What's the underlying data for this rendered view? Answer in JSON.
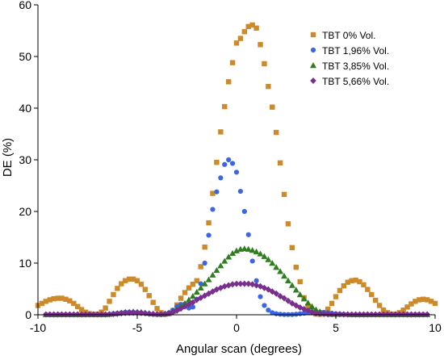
{
  "chart_data": {
    "type": "scatter",
    "title": "",
    "xlabel": "Angular scan (degrees)",
    "ylabel": "DE (%)",
    "xlim": [
      -10,
      10
    ],
    "ylim": [
      0,
      60
    ],
    "xticks": [
      "-10",
      "-5",
      "0",
      "5",
      "10"
    ],
    "xtick_values": [
      -10,
      -5,
      0,
      5,
      10
    ],
    "yticks": [
      "0",
      "10",
      "20",
      "30",
      "40",
      "50",
      "60"
    ],
    "ytick_values": [
      0,
      10,
      20,
      30,
      40,
      50,
      60
    ],
    "grid": false,
    "legend_position": "top-right",
    "x_step": 0.2,
    "series": [
      {
        "name": "TBT 0% Vol.",
        "marker": "square",
        "color": "#CC8A2A",
        "x_start": -10,
        "values": [
          1.8,
          2.2,
          2.6,
          2.9,
          3.1,
          3.2,
          3.2,
          3.0,
          2.7,
          2.2,
          1.6,
          1.0,
          0.5,
          0.2,
          0.05,
          0.1,
          0.5,
          1.3,
          2.6,
          3.9,
          5.1,
          6.0,
          6.6,
          6.9,
          6.9,
          6.6,
          5.9,
          4.9,
          3.7,
          2.4,
          1.2,
          0.4,
          0.1,
          0.2,
          0.8,
          1.9,
          3.2,
          4.3,
          5.2,
          5.9,
          6.6,
          9.3,
          13.1,
          17.8,
          23.5,
          29.5,
          35.4,
          40.3,
          45.1,
          48.8,
          52.6,
          53.5,
          54.8,
          55.8,
          56.1,
          55.5,
          52.3,
          48.6,
          44.2,
          40.2,
          35.3,
          29.4,
          23.3,
          17.6,
          13.0,
          9.2,
          6.4,
          3.3,
          1.7,
          0.6,
          0.15,
          0.1,
          0.4,
          1.1,
          2.2,
          3.5,
          4.7,
          5.6,
          6.3,
          6.6,
          6.7,
          6.4,
          5.8,
          4.9,
          3.9,
          2.8,
          1.8,
          0.9,
          0.4,
          0.1,
          0.1,
          0.4,
          0.9,
          1.5,
          2.1,
          2.6,
          2.9,
          3.0,
          2.9,
          2.6,
          2.2
        ]
      },
      {
        "name": "TBT 1,96% Vol.",
        "marker": "circle",
        "color": "#3A66E6",
        "x_start": -9.6,
        "values": [
          0.05,
          0.05,
          0.05,
          0.05,
          0.05,
          0.05,
          0.05,
          0.05,
          0.05,
          0.05,
          0.05,
          0.05,
          0.05,
          0.05,
          0.05,
          0.05,
          0.1,
          0.2,
          0.3,
          0.4,
          0.5,
          0.5,
          0.5,
          0.45,
          0.4,
          0.3,
          0.2,
          0.1,
          0.05,
          0.05,
          0.1,
          0.4,
          0.9,
          1.6,
          2.0,
          2.1,
          1.3,
          1.5,
          3.0,
          6.0,
          10.0,
          15.4,
          20.4,
          23.8,
          26.5,
          29.1,
          30.0,
          29.3,
          27.6,
          23.9,
          20.0,
          15.5,
          10.4,
          6.6,
          3.5,
          1.8,
          0.9,
          0.4,
          0.2,
          0.1,
          0.05,
          0.05,
          0.05,
          0.1,
          0.2,
          0.3,
          0.4,
          0.5,
          0.5,
          0.5,
          0.45,
          0.4,
          0.3,
          0.2,
          0.15,
          0.1,
          0.05,
          0.05,
          0.05,
          0.05,
          0.05,
          0.05,
          0.05,
          0.05,
          0.05,
          0.05,
          0.05,
          0.05,
          0.05,
          0.05,
          0.05,
          0.05,
          0.05,
          0.05,
          0.05,
          0.05,
          0.05
        ]
      },
      {
        "name": "TBT 3,85% Vol.",
        "marker": "triangle",
        "color": "#2E7D1E",
        "x_start": -9.6,
        "values": [
          0.05,
          0.05,
          0.05,
          0.05,
          0.05,
          0.05,
          0.05,
          0.05,
          0.05,
          0.05,
          0.05,
          0.05,
          0.05,
          0.05,
          0.05,
          0.05,
          0.1,
          0.2,
          0.3,
          0.4,
          0.5,
          0.55,
          0.6,
          0.55,
          0.5,
          0.4,
          0.3,
          0.2,
          0.15,
          0.1,
          0.2,
          0.4,
          0.7,
          1.1,
          1.6,
          2.2,
          2.9,
          3.6,
          4.4,
          5.2,
          6.0,
          6.8,
          7.7,
          8.6,
          9.5,
          10.4,
          11.2,
          11.9,
          12.4,
          12.7,
          12.8,
          12.7,
          12.5,
          12.2,
          11.8,
          11.3,
          10.7,
          10.0,
          9.2,
          8.4,
          7.5,
          6.6,
          5.7,
          4.8,
          3.9,
          3.1,
          2.3,
          1.6,
          1.0,
          0.6,
          0.3,
          0.2,
          0.1,
          0.1,
          0.1,
          0.1,
          0.1,
          0.05,
          0.05,
          0.05,
          0.05,
          0.05,
          0.05,
          0.05,
          0.05,
          0.05,
          0.05,
          0.05,
          0.05,
          0.05,
          0.05,
          0.05,
          0.05,
          0.05,
          0.05,
          0.05,
          0.05
        ]
      },
      {
        "name": "TBT 5,66% Vol.",
        "marker": "diamond",
        "color": "#7A2E8E",
        "x_start": -9.6,
        "values": [
          0.05,
          0.05,
          0.05,
          0.05,
          0.05,
          0.05,
          0.05,
          0.05,
          0.05,
          0.05,
          0.05,
          0.05,
          0.05,
          0.05,
          0.05,
          0.05,
          0.1,
          0.15,
          0.2,
          0.3,
          0.35,
          0.4,
          0.4,
          0.4,
          0.35,
          0.3,
          0.2,
          0.15,
          0.1,
          0.1,
          0.15,
          0.3,
          0.5,
          0.8,
          1.2,
          1.6,
          2.0,
          2.4,
          2.9,
          3.3,
          3.7,
          4.1,
          4.5,
          4.9,
          5.2,
          5.5,
          5.7,
          5.9,
          6.0,
          6.0,
          6.0,
          6.0,
          5.9,
          5.7,
          5.5,
          5.2,
          4.9,
          4.5,
          4.1,
          3.6,
          3.2,
          2.7,
          2.2,
          1.8,
          1.4,
          1.1,
          0.8,
          0.5,
          0.3,
          0.2,
          0.15,
          0.1,
          0.1,
          0.1,
          0.1,
          0.05,
          0.05,
          0.05,
          0.05,
          0.05,
          0.05,
          0.05,
          0.05,
          0.05,
          0.05,
          0.05,
          0.05,
          0.05,
          0.05,
          0.05,
          0.05,
          0.05,
          0.05,
          0.05,
          0.05,
          0.05,
          0.05
        ]
      }
    ]
  }
}
